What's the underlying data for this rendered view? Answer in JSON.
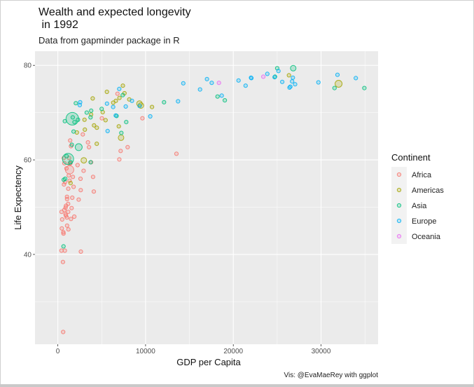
{
  "chart_data": {
    "type": "scatter",
    "title_line1": "Wealth and expected longevity",
    "title_line2": " in 1992",
    "subtitle": "Data from gapminder package in R",
    "caption": "Vis: @EvaMaeRey with ggplot",
    "xlabel": "GDP per Capita",
    "ylabel": "Life Expectency",
    "xlim": [
      -2600,
      36500
    ],
    "ylim": [
      21,
      83
    ],
    "x_ticks": [
      0,
      10000,
      20000,
      30000
    ],
    "x_tick_labels": [
      "0",
      "10000",
      "20000",
      "30000"
    ],
    "y_ticks": [
      40,
      60,
      80
    ],
    "y_tick_labels": [
      "40",
      "60",
      "80"
    ],
    "legend": {
      "title": "Continent",
      "position": "right",
      "entries": [
        "Africa",
        "Americas",
        "Asia",
        "Europe",
        "Oceania"
      ]
    },
    "colors": {
      "Africa": "#F8766D",
      "Americas": "#A3A500",
      "Asia": "#00BF7D",
      "Europe": "#00B0F6",
      "Oceania": "#E76BF3",
      "panel": "#EBEBEB",
      "grid": "#FFFFFF"
    },
    "series": [
      {
        "name": "Africa",
        "points": [
          [
            5023,
            68.8
          ],
          [
            2628,
            40.6
          ],
          [
            1192,
            53.9
          ],
          [
            7954,
            62.7
          ],
          [
            932,
            50.3
          ],
          [
            632,
            44.7
          ],
          [
            1794,
            54.3
          ],
          [
            747,
            49.4
          ],
          [
            1058,
            51.7
          ],
          [
            1246,
            56.7
          ],
          [
            458,
            45.5
          ],
          [
            4016,
            56.4
          ],
          [
            1648,
            52.0
          ],
          [
            3794,
            59.5
          ],
          [
            2377,
            51.6
          ],
          [
            3430,
            63.7
          ],
          [
            422,
            49.0
          ],
          [
            13522,
            61.3
          ],
          [
            1406,
            64.1
          ],
          [
            926,
            48.2
          ],
          [
            646,
            44.4
          ],
          [
            745,
            59.3
          ],
          [
            1341,
            57.9
          ],
          [
            416,
            40.8
          ],
          [
            1570,
            49.8
          ],
          [
            1346,
            59.2
          ],
          [
            2612,
            53.6
          ],
          [
            1178,
            50.7
          ],
          [
            9640,
            68.8
          ],
          [
            826,
            55.3
          ],
          [
            681,
            60.4
          ],
          [
            1440,
            59.3
          ],
          [
            2853,
            65.4
          ],
          [
            7161,
            61.9
          ],
          [
            2935,
            57.7
          ],
          [
            7004,
            60.1
          ],
          [
            4100,
            53.3
          ],
          [
            581,
            38.4
          ],
          [
            877,
            49.9
          ],
          [
            6800,
            74.0
          ],
          [
            2250,
            58.9
          ],
          [
            1500,
            47.5
          ],
          [
            1045,
            52.2
          ],
          [
            1880,
            48.0
          ],
          [
            2586,
            56.0
          ],
          [
            882,
            48.5
          ],
          [
            1058,
            46.1
          ],
          [
            1180,
            49.0
          ],
          [
            1340,
            55.6
          ],
          [
            701,
            54.8
          ],
          [
            980,
            58.2
          ],
          [
            1280,
            60.4
          ],
          [
            1500,
            62.9
          ],
          [
            610,
            23.6
          ],
          [
            3553,
            62.7
          ],
          [
            801,
            40.8
          ],
          [
            1210,
            45.3
          ],
          [
            1720,
            56.4
          ],
          [
            1030,
            47.8
          ],
          [
            500,
            47.4
          ]
        ]
      },
      {
        "name": "Americas",
        "points": [
          [
            9308,
            71.9
          ],
          [
            2962,
            59.9
          ],
          [
            6950,
            67.1
          ],
          [
            26343,
            77.9
          ],
          [
            7596,
            74.1
          ],
          [
            5444,
            68.4
          ],
          [
            7411,
            75.7
          ],
          [
            5593,
            74.4
          ],
          [
            3044,
            68.5
          ],
          [
            3794,
            69.6
          ],
          [
            4444,
            66.8
          ],
          [
            4440,
            63.4
          ],
          [
            1456,
            55.1
          ],
          [
            3081,
            66.4
          ],
          [
            7208,
            64.7
          ],
          [
            9472,
            71.5
          ],
          [
            2170,
            65.8
          ],
          [
            6618,
            72.5
          ],
          [
            4124,
            67.3
          ],
          [
            6316,
            72.1
          ],
          [
            32003,
            76.1
          ],
          [
            8138,
            72.8
          ],
          [
            10733,
            71.2
          ],
          [
            5120,
            70.1
          ],
          [
            3975,
            73.0
          ],
          [
            7020,
            73.1
          ]
        ]
      },
      {
        "name": "Asia",
        "points": [
          [
            649,
            41.7
          ],
          [
            19035,
            72.6
          ],
          [
            837,
            56.0
          ],
          [
            682,
            55.8
          ],
          [
            1656,
            68.7
          ],
          [
            24757,
            77.6
          ],
          [
            1165,
            60.2
          ],
          [
            2383,
            62.7
          ],
          [
            7235,
            65.7
          ],
          [
            3745,
            59.5
          ],
          [
            26825,
            79.4
          ],
          [
            7800,
            68.0
          ],
          [
            12104,
            72.2
          ],
          [
            3726,
            69.0
          ],
          [
            31540,
            75.2
          ],
          [
            25000,
            79.4
          ],
          [
            1700,
            69.0
          ],
          [
            7400,
            73.7
          ],
          [
            1000,
            60.8
          ],
          [
            1600,
            63.2
          ],
          [
            1800,
            66.0
          ],
          [
            2300,
            68.5
          ],
          [
            34933,
            75.2
          ],
          [
            18200,
            73.4
          ],
          [
            3300,
            70.0
          ],
          [
            3800,
            70.4
          ],
          [
            800,
            68.2
          ],
          [
            1900,
            68.0
          ],
          [
            1450,
            59.5
          ],
          [
            2050,
            72.0
          ],
          [
            5000,
            70.8
          ],
          [
            6700,
            69.3
          ]
        ]
      },
      {
        "name": "Europe",
        "points": [
          [
            2497,
            71.6
          ],
          [
            27042,
            76.0
          ],
          [
            25576,
            76.5
          ],
          [
            2547,
            72.2
          ],
          [
            6303,
            71.2
          ],
          [
            8448,
            72.5
          ],
          [
            14297,
            76.2
          ],
          [
            26406,
            75.3
          ],
          [
            21406,
            75.7
          ],
          [
            24704,
            77.5
          ],
          [
            17000,
            77.1
          ],
          [
            22057,
            77.3
          ],
          [
            10535,
            69.2
          ],
          [
            25144,
            78.8
          ],
          [
            26505,
            75.5
          ],
          [
            22014,
            77.4
          ],
          [
            7003,
            75.0
          ],
          [
            26790,
            77.4
          ],
          [
            33965,
            77.3
          ],
          [
            7739,
            71.3
          ],
          [
            16207,
            74.9
          ],
          [
            6598,
            69.4
          ],
          [
            9325,
            71.4
          ],
          [
            18678,
            73.6
          ],
          [
            17541,
            76.3
          ],
          [
            23880,
            78.2
          ],
          [
            31872,
            78.0
          ],
          [
            5678,
            66.1
          ],
          [
            29700,
            76.4
          ],
          [
            5600,
            71.9
          ],
          [
            13700,
            72.4
          ],
          [
            26700,
            76.6
          ],
          [
            20600,
            76.8
          ]
        ]
      },
      {
        "name": "Oceania",
        "points": [
          [
            23425,
            77.6
          ],
          [
            18363,
            76.3
          ]
        ]
      }
    ]
  }
}
